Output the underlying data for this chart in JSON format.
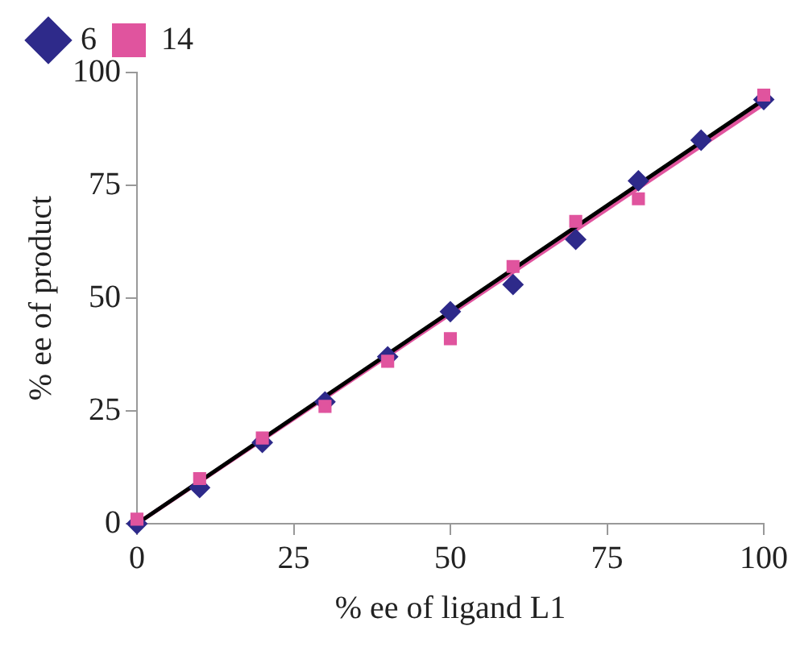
{
  "chart_data": {
    "type": "scatter",
    "xlabel": "% ee of ligand L1",
    "ylabel": "% ee of product",
    "xlim": [
      0,
      100
    ],
    "ylim": [
      0,
      100
    ],
    "xticks": [
      0,
      25,
      50,
      75,
      100
    ],
    "yticks": [
      0,
      25,
      50,
      75,
      100
    ],
    "grid": false,
    "legend": "top left",
    "series": [
      {
        "name": "6",
        "color": "#2e2a8a",
        "marker": "diamond",
        "x": [
          0,
          10,
          20,
          30,
          40,
          50,
          60,
          70,
          80,
          90,
          100
        ],
        "values": [
          0,
          8,
          18,
          27,
          37,
          47,
          53,
          63,
          76,
          85,
          94
        ]
      },
      {
        "name": "14",
        "color": "#e0549e",
        "marker": "square",
        "x": [
          0,
          10,
          20,
          30,
          40,
          50,
          60,
          70,
          80,
          100
        ],
        "values": [
          1,
          10,
          19,
          26,
          36,
          41,
          57,
          67,
          72,
          95
        ]
      },
      {
        "type": "line",
        "color": "#e0549e",
        "marker": "none",
        "x": [
          0,
          100
        ],
        "values": [
          0,
          93
        ]
      },
      {
        "type": "line",
        "color": "#000000",
        "marker": "none",
        "x": [
          0,
          100
        ],
        "values": [
          0,
          94
        ]
      }
    ]
  }
}
